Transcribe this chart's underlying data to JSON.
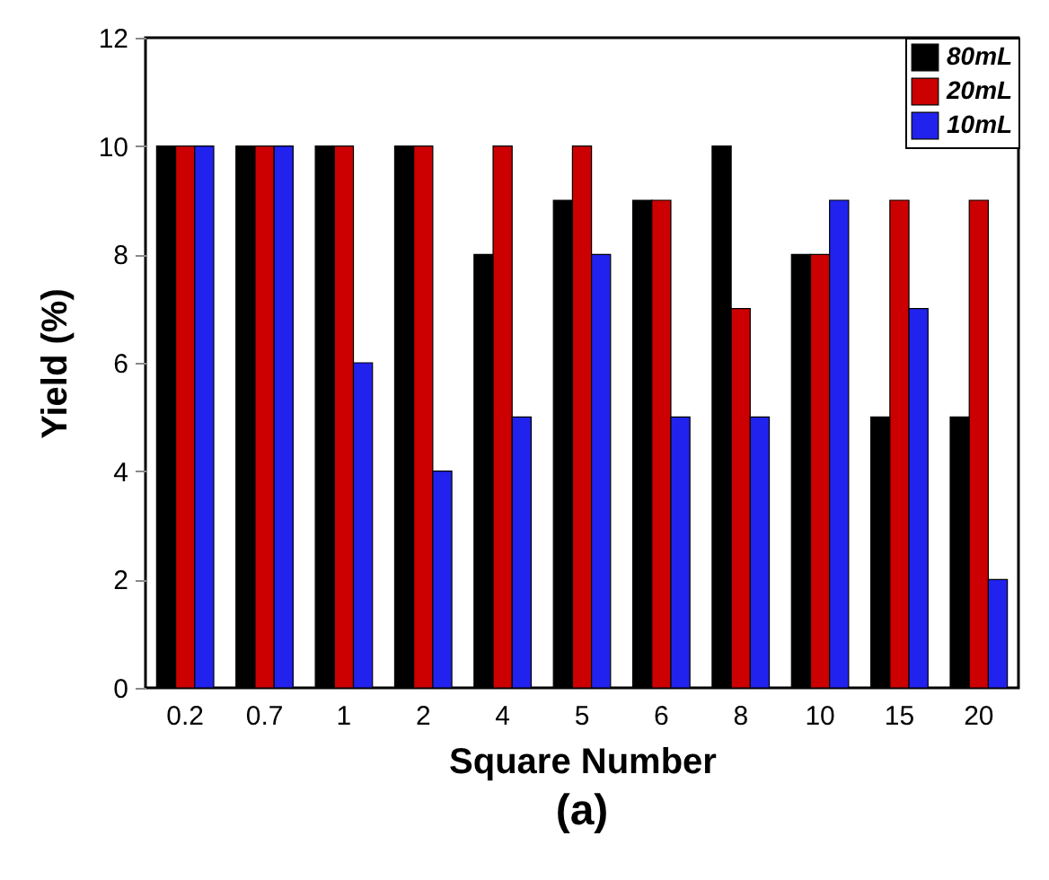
{
  "chart_data": {
    "type": "bar",
    "title": "(a)",
    "xlabel": "Square Number",
    "ylabel": "Yield (%)",
    "categories": [
      "0.2",
      "0.7",
      "1",
      "2",
      "4",
      "5",
      "6",
      "8",
      "10",
      "15",
      "20"
    ],
    "series": [
      {
        "name": "80mL",
        "color": "#000000",
        "values": [
          10,
          10,
          10,
          10,
          8,
          9,
          9,
          10,
          8,
          5,
          5
        ]
      },
      {
        "name": "20mL",
        "color": "#cc0000",
        "values": [
          10,
          10,
          10,
          10,
          10,
          10,
          9,
          7,
          8,
          9,
          9
        ]
      },
      {
        "name": "10mL",
        "color": "#2222ee",
        "values": [
          10,
          10,
          6,
          4,
          5,
          8,
          5,
          5,
          9,
          7,
          2
        ]
      }
    ],
    "ylim": [
      0,
      12
    ],
    "yticks": [
      0,
      2,
      4,
      6,
      8,
      10,
      12
    ],
    "grid": false,
    "legend": "top right"
  }
}
